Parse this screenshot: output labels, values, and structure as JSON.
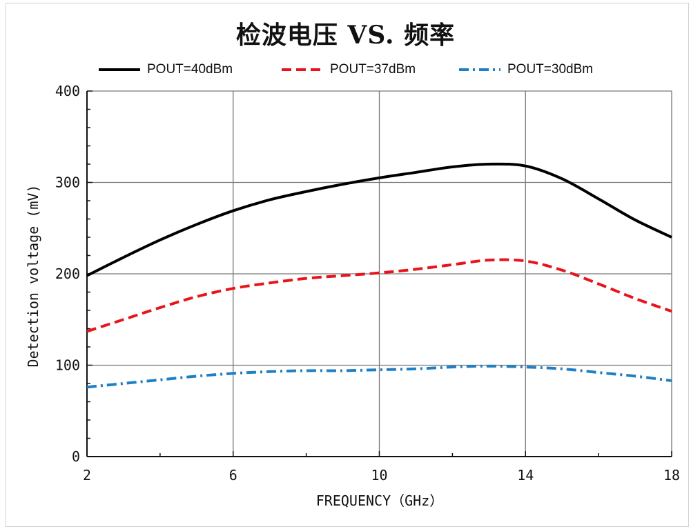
{
  "chart_data": {
    "type": "line",
    "title": "检波电压 VS. 频率",
    "xlabel": "FREQUENCY（GHz）",
    "ylabel": "Detection voltage (mV)",
    "xlim": [
      2,
      18
    ],
    "ylim": [
      0,
      400
    ],
    "xticks": [
      2,
      6,
      10,
      14,
      18
    ],
    "yticks": [
      0,
      100,
      200,
      300,
      400
    ],
    "grid": true,
    "legend_position": "top",
    "series": [
      {
        "name": "POUT=40dBm",
        "color": "#000000",
        "style": "solid",
        "x": [
          2,
          3,
          4,
          5,
          6,
          7,
          8,
          9,
          10,
          11,
          12,
          13,
          14,
          15,
          16,
          17,
          18
        ],
        "y": [
          198,
          218,
          237,
          254,
          269,
          281,
          290,
          298,
          305,
          311,
          317,
          320,
          318,
          304,
          282,
          259,
          240
        ]
      },
      {
        "name": "POUT=37dBm",
        "color": "#e8141b",
        "style": "dashed",
        "x": [
          2,
          3,
          4,
          5,
          6,
          7,
          8,
          9,
          10,
          11,
          12,
          13,
          14,
          15,
          16,
          17,
          18
        ],
        "y": [
          137,
          150,
          163,
          175,
          184,
          190,
          195,
          198,
          201,
          205,
          210,
          215,
          214,
          204,
          189,
          173,
          159
        ]
      },
      {
        "name": "POUT=30dBm",
        "color": "#1f7fc4",
        "style": "dashdot",
        "x": [
          2,
          3,
          4,
          5,
          6,
          7,
          8,
          9,
          10,
          11,
          12,
          13,
          14,
          15,
          16,
          17,
          18
        ],
        "y": [
          76,
          80,
          84,
          88,
          91,
          93,
          94,
          94,
          95,
          96,
          98,
          99,
          98,
          96,
          92,
          88,
          83
        ]
      }
    ]
  }
}
